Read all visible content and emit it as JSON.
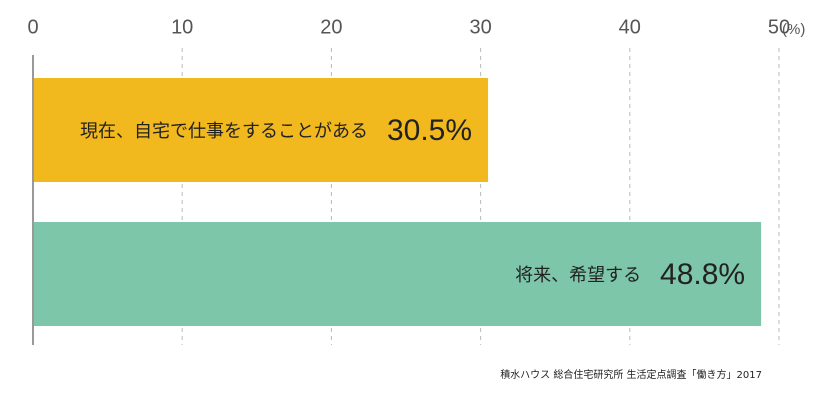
{
  "chart_data": {
    "type": "bar",
    "orientation": "horizontal",
    "categories": [
      "現在、自宅で仕事をすることがある",
      "将来、希望する"
    ],
    "values": [
      30.5,
      48.8
    ],
    "value_labels": [
      "30.5%",
      "48.8%"
    ],
    "colors": [
      "#f2b91f",
      "#7dc6a9"
    ],
    "xlabel": "(%)",
    "xlim": [
      0,
      50
    ],
    "xticks": [
      0,
      10,
      20,
      30,
      40,
      50
    ],
    "grid": true,
    "source": "積水ハウス 総合住宅研究所 生活定点調査「働き方」2017"
  }
}
